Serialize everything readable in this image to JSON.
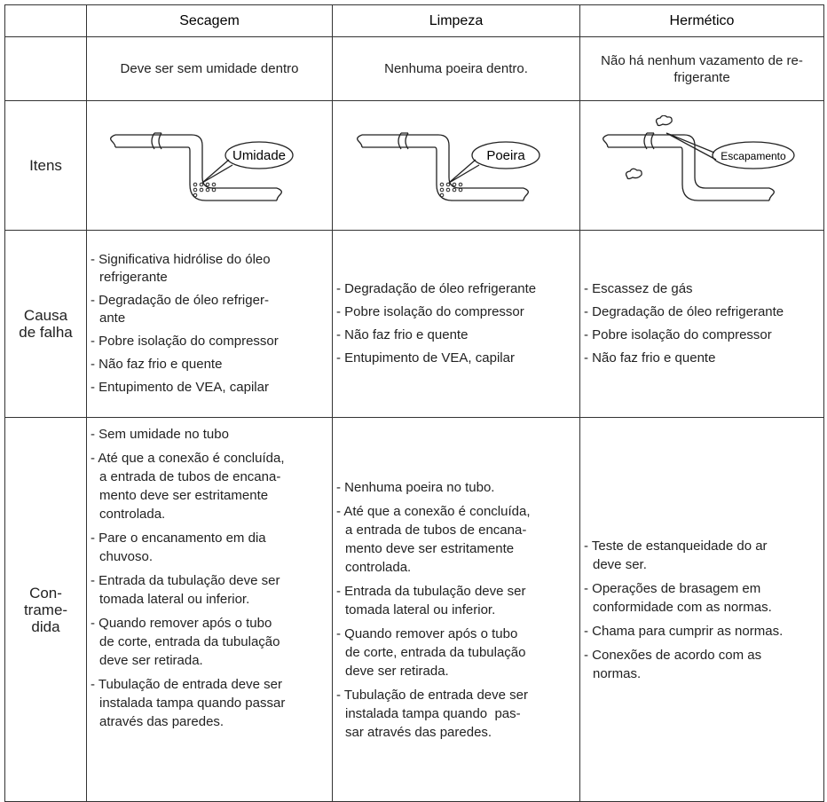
{
  "header": [
    "Secagem",
    "Limpeza",
    "Hermético"
  ],
  "requirements": [
    [
      "Deve ser sem umidade dentro"
    ],
    [
      "Nenhuma poeira dentro."
    ],
    [
      "Não há nenhum vazamento de re-",
      "frigerante"
    ]
  ],
  "items": {
    "label": "Itens",
    "diagram_labels": [
      "Umidade",
      "Poeira",
      "Escapamento"
    ]
  },
  "failure_causes": {
    "label": [
      "Causa",
      "de falha"
    ],
    "columns": [
      [
        [
          "- Significativa hidrólise do óleo",
          "refrigerante"
        ],
        [
          "- Degradação de óleo refriger-",
          "ante"
        ],
        [
          "- Pobre isolação do compressor"
        ],
        [
          "- Não faz frio e quente"
        ],
        [
          "- Entupimento de VEA, capilar"
        ]
      ],
      [
        [
          "- Degradação de óleo refrigerante"
        ],
        [
          "- Pobre isolação do compressor"
        ],
        [
          "- Não faz frio e quente"
        ],
        [
          "- Entupimento de VEA, capilar"
        ]
      ],
      [
        [
          "- Escassez de gás"
        ],
        [
          "- Degradação de óleo refrigerante"
        ],
        [
          "- Pobre isolação do compressor"
        ],
        [
          "- Não faz frio e quente"
        ]
      ]
    ]
  },
  "countermeasures": {
    "label": [
      "Con-",
      "trame-",
      "dida"
    ],
    "columns": [
      [
        [
          "- Sem umidade no tubo"
        ],
        [
          "- Até que a conexão é concluída,",
          "a entrada de tubos de encana-",
          "mento deve ser estritamente",
          "controlada."
        ],
        [
          "- Pare o encanamento em dia",
          "chuvoso."
        ],
        [
          "- Entrada da tubulação deve ser",
          "tomada lateral ou inferior."
        ],
        [
          "- Quando remover após o tubo",
          "de corte, entrada da tubulação",
          "deve ser retirada."
        ],
        [
          "- Tubulação de entrada deve ser",
          "instalada tampa quando passar",
          "através das paredes."
        ]
      ],
      [
        [
          "- Nenhuma poeira no tubo."
        ],
        [
          "- Até que a conexão é concluída,",
          "a entrada de tubos de encana-",
          "mento deve ser estritamente",
          "controlada."
        ],
        [
          "- Entrada da tubulação deve ser",
          "tomada lateral ou inferior."
        ],
        [
          "- Quando remover após o tubo",
          "de corte, entrada da tubulação",
          "deve ser retirada."
        ],
        [
          "- Tubulação de entrada deve ser",
          "instalada tampa quando  pas-",
          "sar através das paredes."
        ]
      ],
      [
        [
          "- Teste de estanqueidade do ar",
          "deve ser."
        ],
        [
          "- Operações de brasagem em",
          "conformidade com as normas."
        ],
        [
          "- Chama para cumprir as normas."
        ],
        [
          "- Conexões de acordo com as",
          "normas."
        ]
      ]
    ]
  }
}
